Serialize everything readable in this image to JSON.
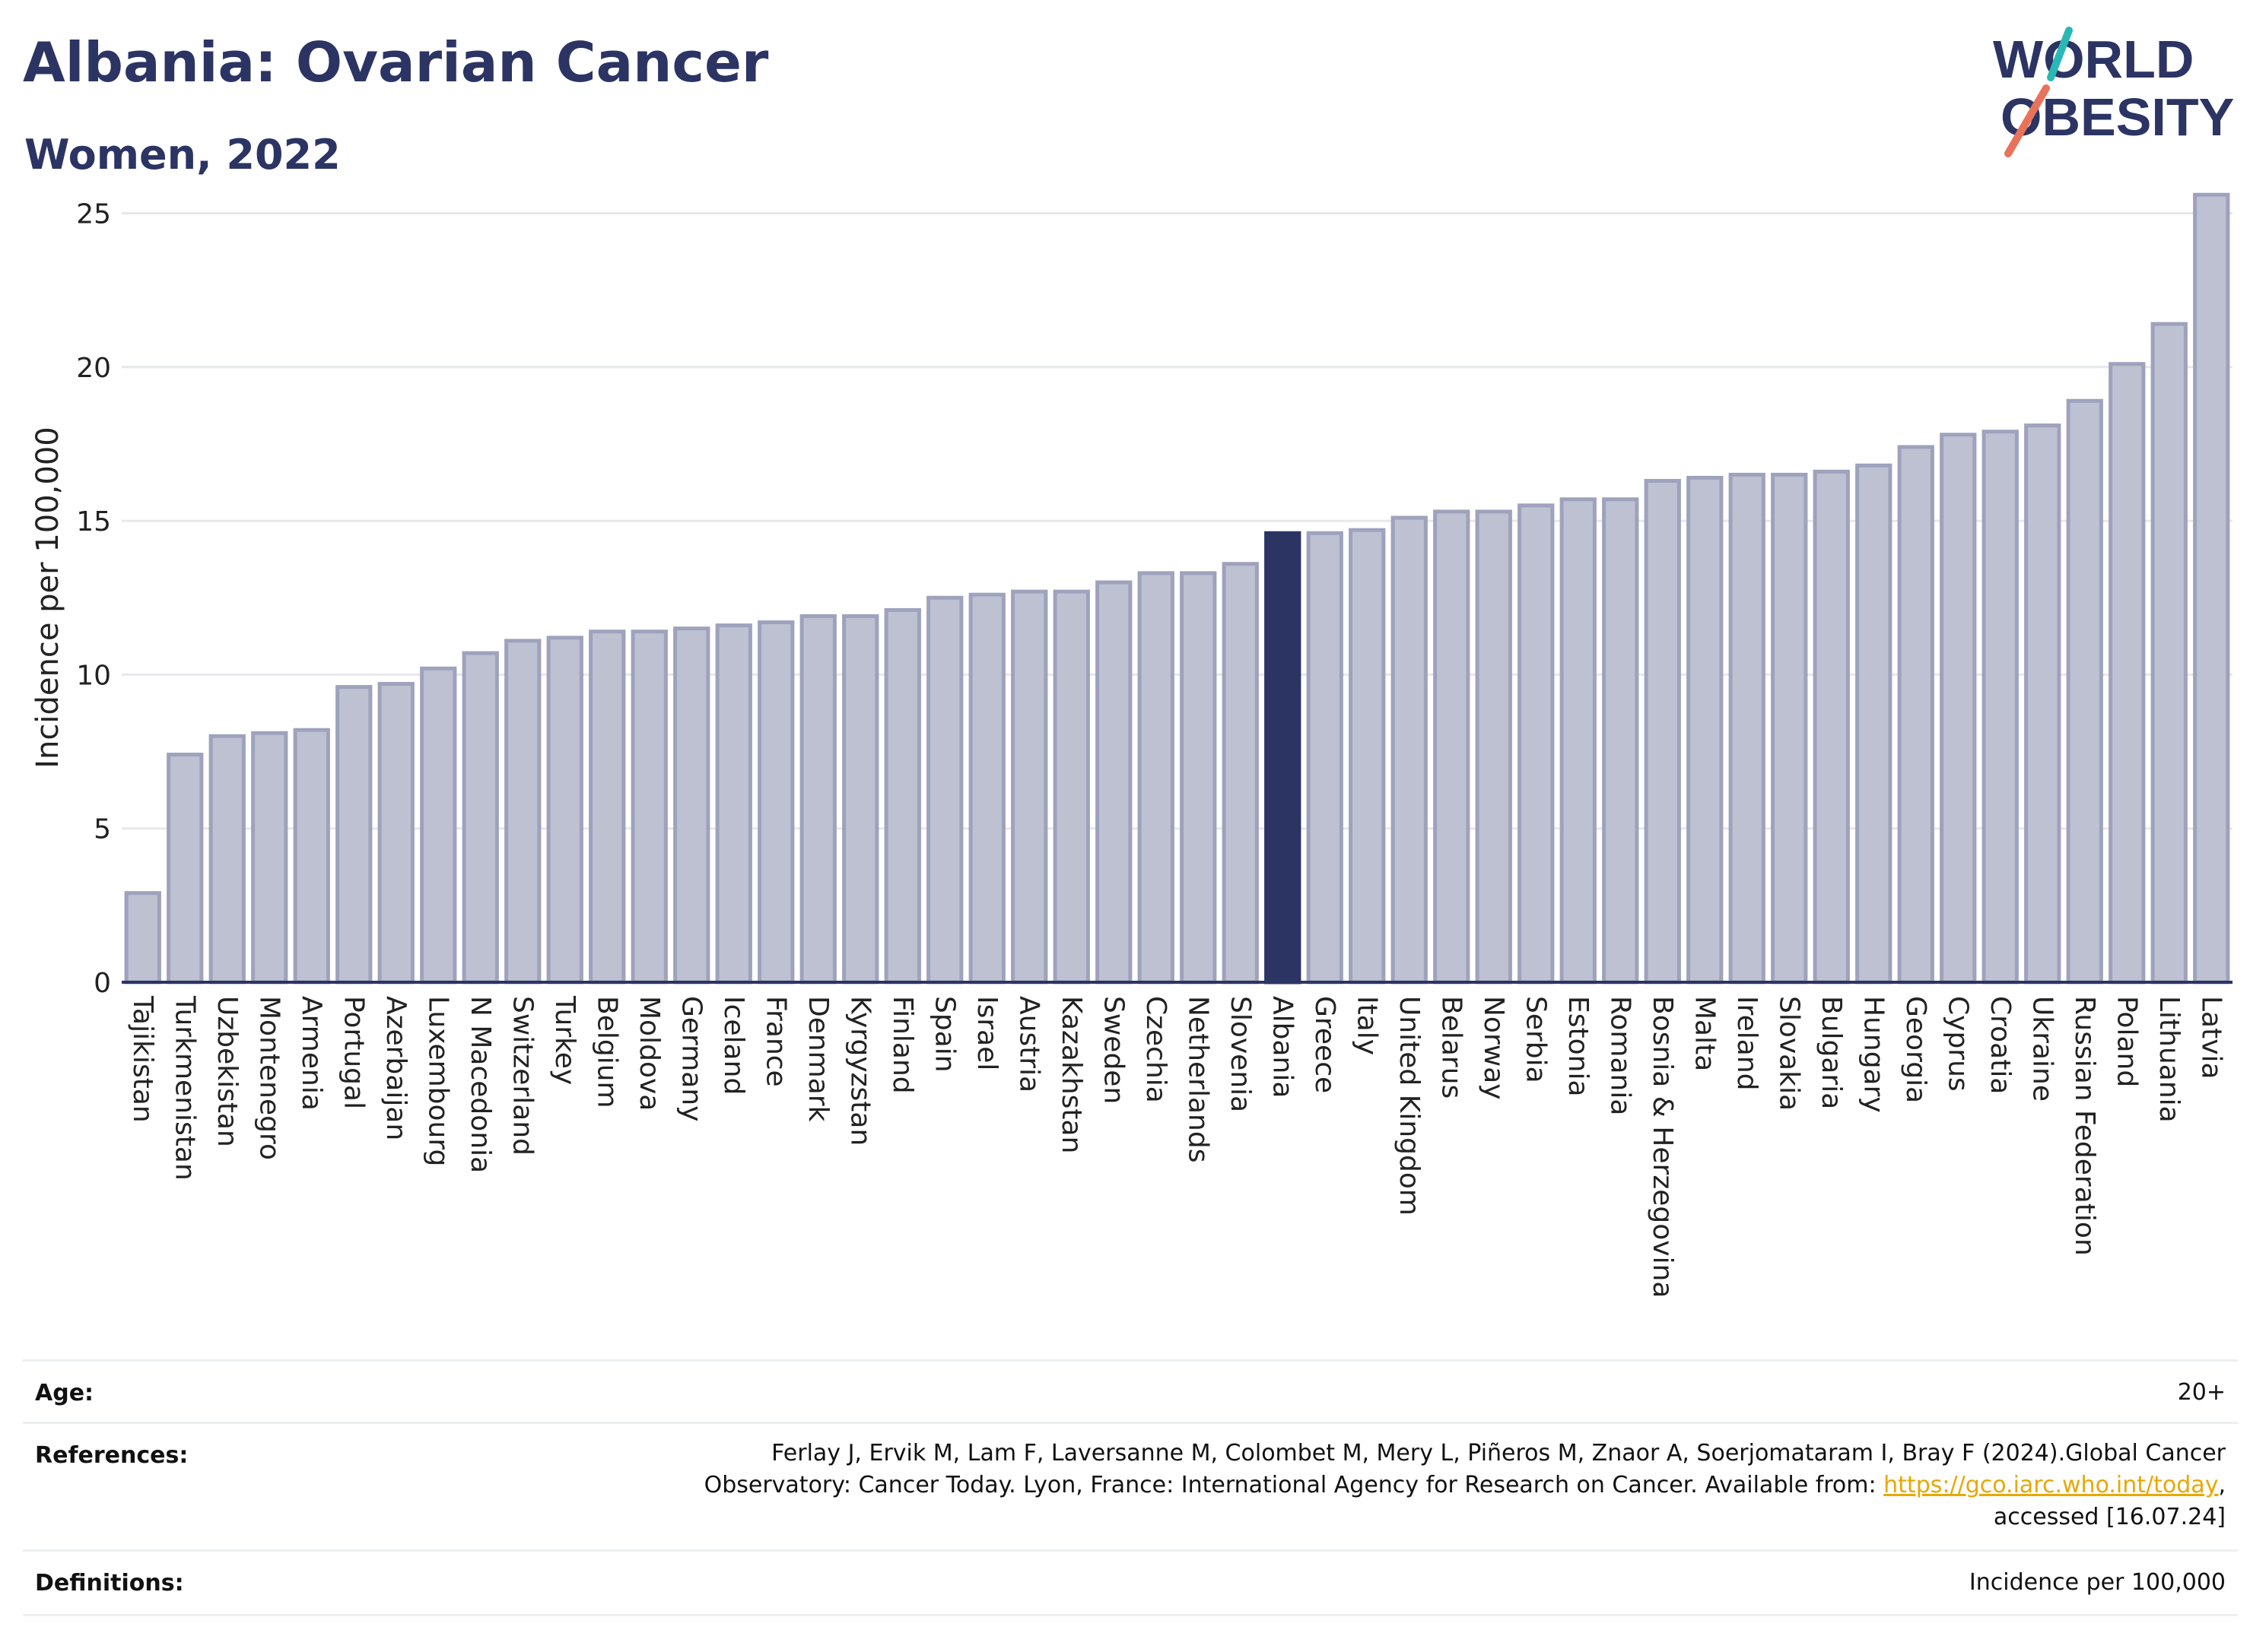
{
  "header": {
    "title": "Albania: Ovarian Cancer",
    "subtitle": "Women, 2022",
    "logo_line1": "WORLD",
    "logo_line2": "OBESITY"
  },
  "colors": {
    "bar": "#bec1d2",
    "bar_border": "#9ea2bc",
    "highlight": "#2b3463",
    "grid": "#e6e8ec",
    "axis": "#2b3463",
    "logo_teal": "#2ab8b6",
    "logo_coral": "#e8735a"
  },
  "chart_data": {
    "type": "bar",
    "title": "Albania: Ovarian Cancer",
    "subtitle": "Women, 2022",
    "xlabel": "",
    "ylabel": "Incidence per 100,000",
    "ylim": [
      0,
      26
    ],
    "yticks": [
      0,
      5,
      10,
      15,
      20,
      25
    ],
    "grid": true,
    "highlight": "Albania",
    "categories": [
      "Tajikistan",
      "Turkmenistan",
      "Uzbekistan",
      "Montenegro",
      "Armenia",
      "Portugal",
      "Azerbaijan",
      "Luxembourg",
      "N Macedonia",
      "Switzerland",
      "Turkey",
      "Belgium",
      "Moldova",
      "Germany",
      "Iceland",
      "France",
      "Denmark",
      "Kyrgyzstan",
      "Finland",
      "Spain",
      "Israel",
      "Austria",
      "Kazakhstan",
      "Sweden",
      "Czechia",
      "Netherlands",
      "Slovenia",
      "Albania",
      "Greece",
      "Italy",
      "United Kingdom",
      "Belarus",
      "Norway",
      "Serbia",
      "Estonia",
      "Romania",
      "Bosnia & Herzegovina",
      "Malta",
      "Ireland",
      "Slovakia",
      "Bulgaria",
      "Hungary",
      "Georgia",
      "Cyprus",
      "Croatia",
      "Ukraine",
      "Russian Federation",
      "Poland",
      "Lithuania",
      "Latvia"
    ],
    "values": [
      2.9,
      7.4,
      8.0,
      8.1,
      8.2,
      9.6,
      9.7,
      10.2,
      10.7,
      11.1,
      11.2,
      11.4,
      11.4,
      11.5,
      11.6,
      11.7,
      11.9,
      11.9,
      12.1,
      12.5,
      12.6,
      12.7,
      12.7,
      13.0,
      13.3,
      13.3,
      13.6,
      14.6,
      14.6,
      14.7,
      15.1,
      15.3,
      15.3,
      15.5,
      15.7,
      15.7,
      16.3,
      16.4,
      16.5,
      16.5,
      16.6,
      16.8,
      17.4,
      17.8,
      17.9,
      18.1,
      18.9,
      20.1,
      21.4,
      25.6
    ]
  },
  "footer": {
    "age_label": "Age:",
    "age_value": "20+",
    "references_label": "References:",
    "references_line1": "Ferlay J, Ervik M, Lam F, Laversanne M, Colombet M, Mery L, Piñeros M, Znaor A, Soerjomataram I, Bray F (2024).Global Cancer",
    "references_line2_pre": "Observatory: Cancer Today. Lyon, France: International Agency for Research on Cancer. Available from: ",
    "references_link": "https://gco.iarc.who.int/today",
    "references_line2_post": ",",
    "references_line3": "accessed [16.07.24]",
    "definitions_label": "Definitions:",
    "definitions_value": "Incidence per 100,000"
  }
}
